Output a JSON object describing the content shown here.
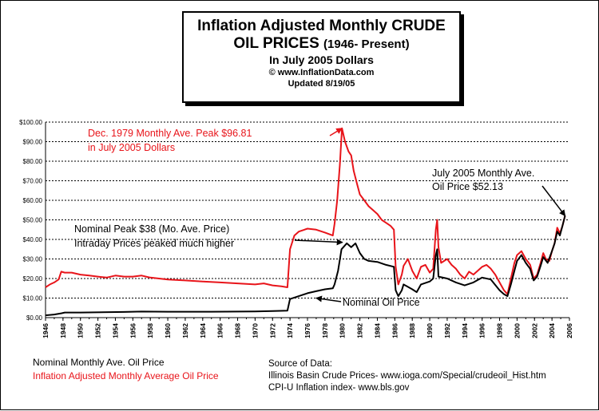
{
  "title": {
    "line1": "Inflation Adjusted Monthly CRUDE",
    "line2_main": "OIL PRICES",
    "line2_small": "(1946- Present)",
    "line3": "In July 2005 Dollars",
    "line4": "© www.InflationData.com",
    "line5": "Updated 8/19/05"
  },
  "legend": {
    "nominal": "Nominal Monthly Ave. Oil Price",
    "adjusted": "Inflation Adjusted Monthly Average Oil Price"
  },
  "source": {
    "heading": "Source of Data:",
    "line1": "Illinois Basin Crude Prices-   www.ioga.com/Special/crudeoil_Hist.htm",
    "line2": "CPI-U Inflation index-   www.bls.gov"
  },
  "annotations": [
    {
      "id": "peak1979",
      "lines": [
        "Dec. 1979 Monthly Ave. Peak $96.81",
        "in July 2005 Dollars"
      ],
      "color": "#e8141a",
      "target": [
        1979.95,
        96.81
      ]
    },
    {
      "id": "nominalPeak",
      "lines": [
        "Nominal Peak $38 (Mo. Ave. Price)",
        "Intraday Prices peaked much higher"
      ],
      "color": "#000000",
      "target": [
        1980.0,
        38.5
      ]
    },
    {
      "id": "july2005",
      "lines": [
        "July 2005 Monthly Ave.",
        "Oil Price $52.13"
      ],
      "color": "#000000",
      "target": [
        2005.5,
        52.13
      ]
    },
    {
      "id": "nominalLabel",
      "lines": [
        "Nominal Oil Price"
      ],
      "color": "#000000",
      "target": [
        1977.0,
        10.0
      ]
    }
  ],
  "colors": {
    "adjusted": "#e8141a",
    "nominal": "#000000",
    "grid": "#000000"
  },
  "chart_data": {
    "type": "line",
    "title": "Inflation Adjusted Monthly CRUDE OIL PRICES (1946- Present) In July 2005 Dollars",
    "xlabel": "",
    "ylabel": "",
    "xlim": [
      1946,
      2006
    ],
    "ylim": [
      0,
      100
    ],
    "x_ticks": [
      1946,
      1948,
      1950,
      1952,
      1954,
      1956,
      1958,
      1960,
      1962,
      1964,
      1966,
      1968,
      1970,
      1972,
      1974,
      1976,
      1978,
      1980,
      1982,
      1984,
      1986,
      1988,
      1990,
      1992,
      1994,
      1996,
      1998,
      2000,
      2002,
      2004,
      2006
    ],
    "y_ticks": [
      "$0.00",
      "$10.00",
      "$20.00",
      "$30.00",
      "$40.00",
      "$50.00",
      "$60.00",
      "$70.00",
      "$80.00",
      "$90.00",
      "$100.00"
    ],
    "grid": "horizontal dotted",
    "series": [
      {
        "name": "Inflation Adjusted Monthly Average Oil Price",
        "x": [
          1946.0,
          1946.5,
          1947.0,
          1947.5,
          1947.8,
          1948.2,
          1949.0,
          1950.0,
          1951.0,
          1952.0,
          1953.0,
          1954.0,
          1955.0,
          1956.0,
          1957.0,
          1957.5,
          1958.0,
          1959.0,
          1960.0,
          1962.0,
          1964.0,
          1966.0,
          1968.0,
          1970.0,
          1971.0,
          1972.0,
          1973.0,
          1973.7,
          1974.0,
          1974.5,
          1975.0,
          1976.0,
          1977.0,
          1978.0,
          1978.9,
          1979.1,
          1979.4,
          1979.7,
          1979.95,
          1980.3,
          1980.7,
          1981.0,
          1981.3,
          1981.7,
          1982.0,
          1982.5,
          1983.0,
          1983.5,
          1984.0,
          1984.5,
          1985.0,
          1985.5,
          1985.9,
          1986.1,
          1986.4,
          1986.8,
          1987.0,
          1987.5,
          1988.0,
          1988.5,
          1989.0,
          1989.5,
          1990.0,
          1990.4,
          1990.7,
          1990.85,
          1991.0,
          1991.3,
          1992.0,
          1992.5,
          1993.0,
          1993.5,
          1994.0,
          1994.5,
          1995.0,
          1995.5,
          1996.0,
          1996.5,
          1997.0,
          1997.5,
          1998.0,
          1998.5,
          1998.9,
          1999.3,
          1999.7,
          2000.0,
          2000.5,
          2001.0,
          2001.5,
          2001.9,
          2002.3,
          2002.7,
          2003.0,
          2003.3,
          2003.7,
          2004.0,
          2004.3,
          2004.6,
          2004.9,
          2005.2,
          2005.5
        ],
        "values": [
          15.5,
          17.0,
          18.0,
          19.5,
          23.5,
          23.0,
          23.0,
          22.0,
          21.5,
          21.0,
          20.5,
          21.5,
          21.0,
          21.0,
          21.5,
          21.0,
          20.5,
          20.0,
          19.5,
          19.0,
          18.5,
          18.0,
          17.5,
          17.0,
          17.5,
          16.5,
          16.0,
          15.5,
          35.0,
          42.0,
          44.0,
          45.5,
          45.0,
          43.5,
          42.0,
          48.0,
          60.0,
          78.0,
          96.8,
          90.0,
          85.0,
          83.0,
          75.0,
          68.0,
          63.0,
          60.0,
          57.0,
          55.0,
          53.0,
          50.0,
          48.5,
          47.0,
          45.0,
          26.0,
          17.0,
          22.0,
          26.5,
          30.0,
          24.0,
          20.0,
          26.0,
          27.0,
          23.0,
          25.0,
          45.0,
          50.0,
          36.0,
          28.0,
          30.0,
          27.0,
          25.0,
          22.0,
          20.0,
          23.5,
          22.0,
          24.0,
          26.0,
          27.0,
          25.0,
          22.0,
          18.0,
          14.0,
          12.0,
          20.0,
          28.0,
          32.0,
          34.0,
          30.0,
          27.0,
          20.0,
          22.0,
          28.0,
          33.0,
          30.0,
          29.0,
          34.0,
          38.0,
          46.0,
          43.0,
          47.0,
          52.13
        ]
      },
      {
        "name": "Nominal Monthly Ave. Oil Price",
        "x": [
          1946.0,
          1947.0,
          1947.8,
          1948.2,
          1950.0,
          1955.0,
          1957.0,
          1960.0,
          1965.0,
          1970.0,
          1972.0,
          1973.7,
          1974.0,
          1975.0,
          1976.0,
          1977.0,
          1978.0,
          1978.9,
          1979.1,
          1979.5,
          1979.9,
          1980.5,
          1981.0,
          1981.5,
          1982.0,
          1982.5,
          1983.0,
          1984.0,
          1985.0,
          1985.9,
          1986.1,
          1986.4,
          1986.8,
          1987.0,
          1988.0,
          1988.5,
          1989.0,
          1990.0,
          1990.4,
          1990.7,
          1990.85,
          1991.0,
          1992.0,
          1993.0,
          1994.0,
          1995.0,
          1996.0,
          1997.0,
          1998.0,
          1998.5,
          1998.9,
          1999.3,
          1999.7,
          2000.0,
          2000.5,
          2001.0,
          2001.5,
          2001.9,
          2002.3,
          2002.7,
          2003.0,
          2003.5,
          2004.0,
          2004.3,
          2004.6,
          2004.9,
          2005.2,
          2005.5
        ],
        "values": [
          1.2,
          1.6,
          2.2,
          2.6,
          2.6,
          2.9,
          3.1,
          3.0,
          3.0,
          3.2,
          3.4,
          3.6,
          9.5,
          11.0,
          12.5,
          13.5,
          14.5,
          15.0,
          17.0,
          24.0,
          35.0,
          38.0,
          36.0,
          38.0,
          33.0,
          30.0,
          29.0,
          28.5,
          27.0,
          26.0,
          14.0,
          11.0,
          14.0,
          17.0,
          14.5,
          13.0,
          17.0,
          18.5,
          20.0,
          32.0,
          35.0,
          21.0,
          20.0,
          18.0,
          16.5,
          18.0,
          20.5,
          19.5,
          14.0,
          12.0,
          11.0,
          17.0,
          24.0,
          29.0,
          32.0,
          28.0,
          25.0,
          19.0,
          21.0,
          26.5,
          31.0,
          28.0,
          34.0,
          38.0,
          44.0,
          42.0,
          47.0,
          52.13
        ]
      }
    ]
  }
}
